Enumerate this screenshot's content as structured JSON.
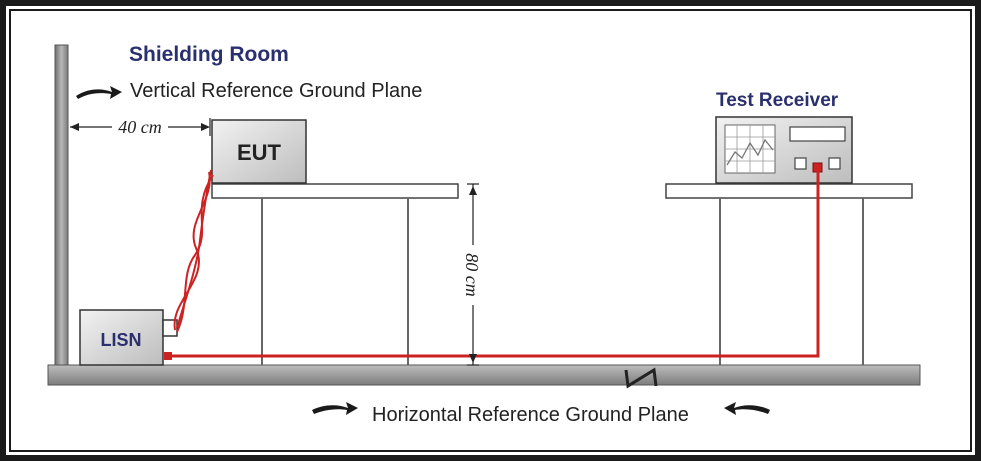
{
  "diagram": {
    "title": "Shielding Room",
    "vertical_plane_label": "Vertical Reference Ground Plane",
    "horizontal_plane_label": "Horizontal Reference Ground Plane",
    "eut_label": "EUT",
    "lisn_label": "LISN",
    "receiver_title": "Test Receiver",
    "distance_label": "40 cm",
    "height_label": "80 cm"
  },
  "colors": {
    "cable": "#cc2222",
    "title_text": "#2a2f6e",
    "frame": "#1a1a1a",
    "wall": "#9a9a9a",
    "box_fill": "#e8e8e8"
  }
}
